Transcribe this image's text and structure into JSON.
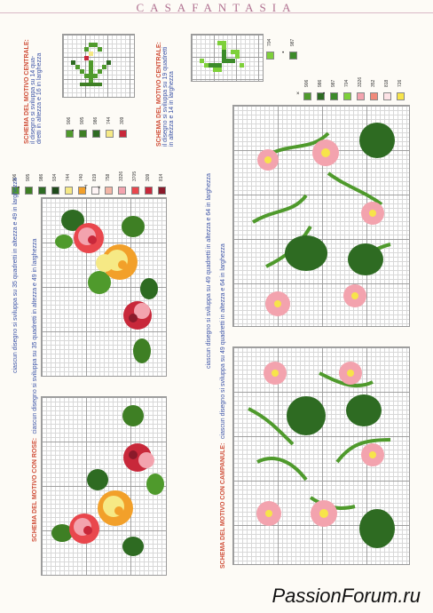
{
  "header": {
    "title": "CASAFANTASIA"
  },
  "captions": {
    "top_left": {
      "title": "SCHEMA DEL MOTIVO CENTRALE:",
      "line1": "il disegno si sviluppa su 14 qua-",
      "line2": "dretti in altezza e 16 in larghezza"
    },
    "top_mid": {
      "title": "SCHEMA DEL MOTIVO CENTRALE:",
      "line1": "il disegno si sviluppa su 19 quadretti",
      "line2": "in altezza e 14 in larghezza"
    },
    "roses_side": {
      "text": "ciascun disegno si sviluppa su 35 quadretti in altezza e 49 in larghezza"
    },
    "roses_bottom": {
      "title": "SCHEMA DEL MOTIVO CON ROSE:",
      "text": "ciascun disegno si sviluppa su 35 quadretti in altezza e 49 in larghezza"
    },
    "bell_side": {
      "text": "ciascun disegno si sviluppa su 49 quadretti in altezza e 64 in larghezza"
    },
    "bell_bottom": {
      "title": "SCHEMA DEL MOTIVO CON CAMPANULE:",
      "text": "ciascun disegno si sviluppa su 49 quadretti in altezza e 64 in larghezza"
    }
  },
  "legends": {
    "top_left": [
      {
        "code": "906",
        "color": "#4f9a2c",
        "sym": ""
      },
      {
        "code": "905",
        "color": "#3e7f24",
        "sym": "•"
      },
      {
        "code": "986",
        "color": "#2e6b22",
        "sym": ""
      },
      {
        "code": "744",
        "color": "#f6e985",
        "sym": ""
      },
      {
        "code": "309",
        "color": "#c8283a",
        "sym": ""
      }
    ],
    "top_mid": [
      {
        "code": "704",
        "color": "#7ed03a",
        "sym": ""
      },
      {
        "code": "987",
        "color": "#3c8b2a",
        "sym": "•"
      }
    ],
    "roses": [
      {
        "code": "906",
        "color": "#4f9a2c",
        "sym": ""
      },
      {
        "code": "905",
        "color": "#3e7f24",
        "sym": "•"
      },
      {
        "code": "986",
        "color": "#2e6b22",
        "sym": ""
      },
      {
        "code": "934",
        "color": "#1f4a1a",
        "sym": ""
      },
      {
        "code": "744",
        "color": "#f6e985",
        "sym": ""
      },
      {
        "code": "740",
        "color": "#f2a02a",
        "sym": ""
      },
      {
        "code": "819",
        "color": "#fff5f5",
        "sym": "T"
      },
      {
        "code": "758",
        "color": "#f3b6a6",
        "sym": "×"
      },
      {
        "code": "3326",
        "color": "#f3a3ae",
        "sym": ""
      },
      {
        "code": "3705",
        "color": "#e9474d",
        "sym": ""
      },
      {
        "code": "309",
        "color": "#c8283a",
        "sym": ""
      },
      {
        "code": "814",
        "color": "#8a1a2a",
        "sym": ""
      }
    ],
    "bell": [
      {
        "code": "906",
        "color": "#4f9a2c",
        "sym": "×"
      },
      {
        "code": "986",
        "color": "#2e6b22",
        "sym": ""
      },
      {
        "code": "987",
        "color": "#3c8b2a",
        "sym": "•"
      },
      {
        "code": "704",
        "color": "#7ed03a",
        "sym": ""
      },
      {
        "code": "3326",
        "color": "#f3a3ae",
        "sym": ""
      },
      {
        "code": "352",
        "color": "#f08a7a",
        "sym": ""
      },
      {
        "code": "818",
        "color": "#fde3e6",
        "sym": ""
      },
      {
        "code": "726",
        "color": "#f7e44a",
        "sym": ""
      }
    ]
  },
  "watermark": "PassionForum.ru"
}
